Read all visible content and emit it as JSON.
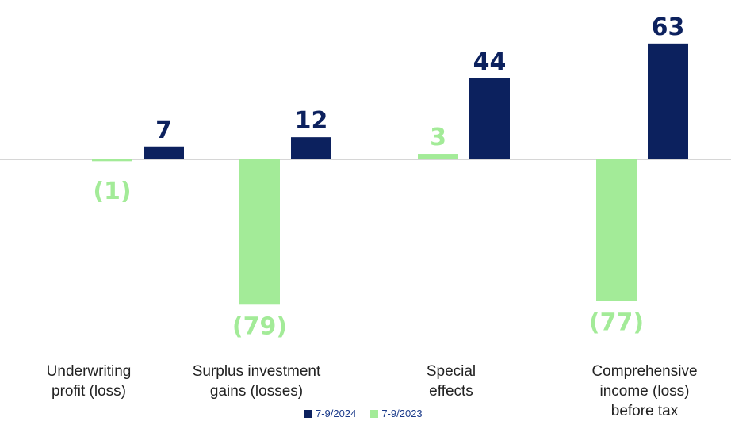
{
  "chart_data": {
    "type": "bar",
    "categories": [
      "Underwriting\nprofit (loss)",
      "Surplus investment\ngains (losses)",
      "Special\neffects",
      "Comprehensive\nincome  (loss)\nbefore tax"
    ],
    "series": [
      {
        "name": "7-9/2023",
        "color": "#a3eb98",
        "values": [
          -1,
          -79,
          3,
          -77
        ],
        "labels": [
          "(1)",
          "(79)",
          "3",
          "(77)"
        ]
      },
      {
        "name": "7-9/2024",
        "color": "#0c215e",
        "values": [
          7,
          12,
          44,
          63
        ],
        "labels": [
          "7",
          "12",
          "44",
          "63"
        ]
      }
    ],
    "ylim": [
      -90,
      65
    ],
    "grid": false,
    "legend": "bottom-center"
  }
}
